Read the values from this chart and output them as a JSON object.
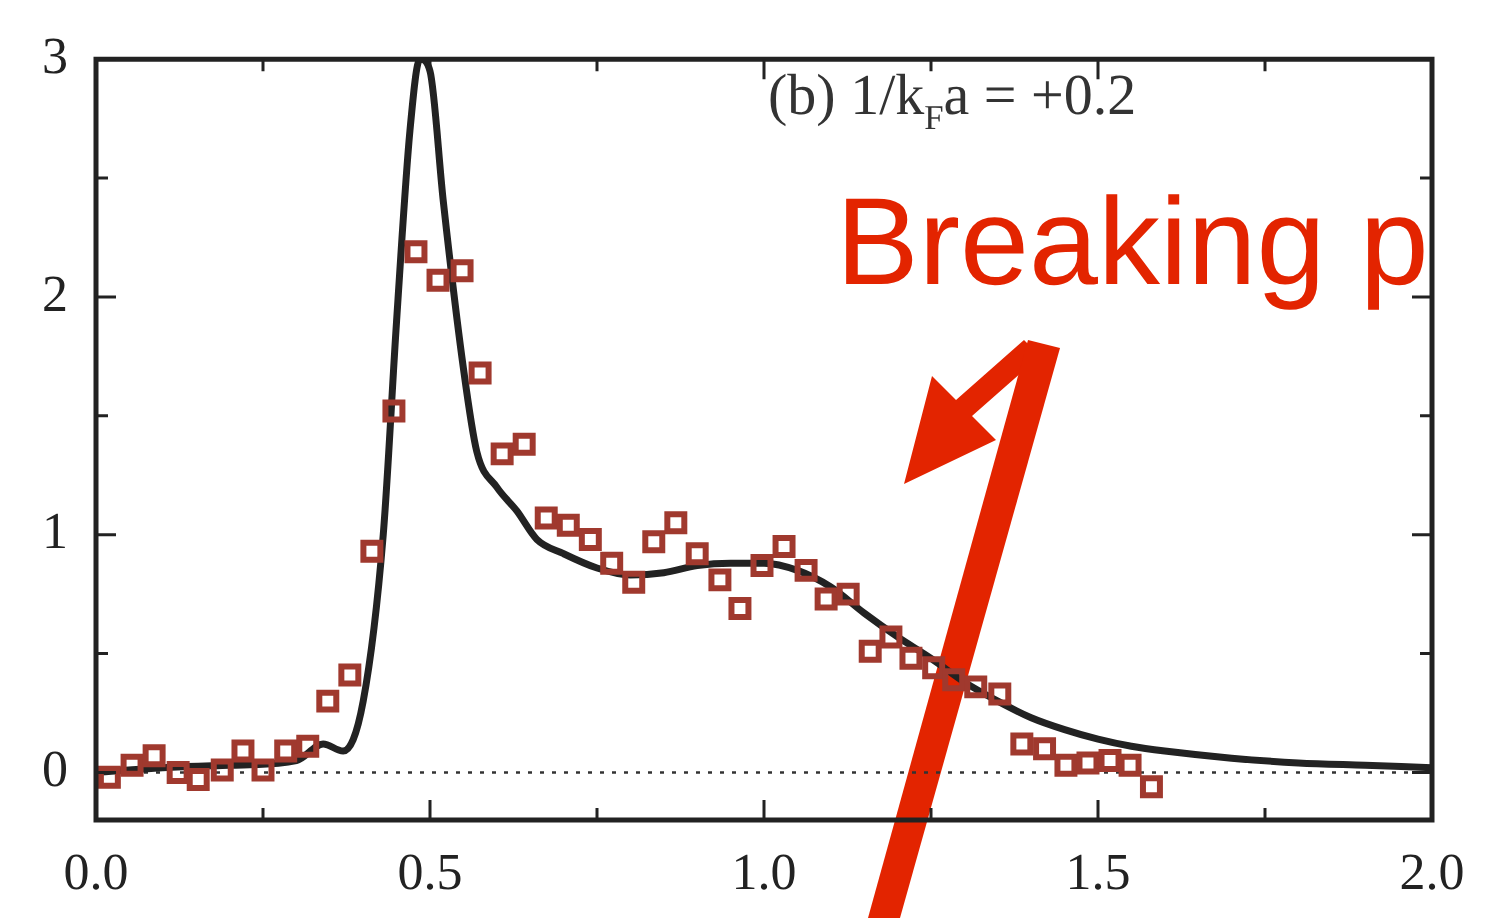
{
  "chart_data": {
    "type": "line",
    "annotations": [
      "(b) 1/k$_{F}$a = +0.2",
      "Breaking p"
    ],
    "xlim": [
      0,
      2
    ],
    "xticks": [
      {
        "value": 0,
        "label": "0.0"
      },
      {
        "value": 0.25,
        "label": null
      },
      {
        "value": 0.5,
        "label": "0.5"
      },
      {
        "value": 0.75,
        "label": null
      },
      {
        "value": 1,
        "label": "1.0"
      },
      {
        "value": 1.25,
        "label": null
      },
      {
        "value": 1.5,
        "label": "1.5"
      },
      {
        "value": 1.75,
        "label": null
      },
      {
        "value": 2,
        "label": "2.0"
      }
    ],
    "ylim": [
      -0.2,
      3
    ],
    "yticks": [
      0,
      {
        "value": 0.5,
        "label": null
      },
      1,
      {
        "value": 1.5,
        "label": null
      },
      2,
      {
        "value": 2.5,
        "label": null
      },
      3
    ],
    "ref_lines": [
      {
        "axis": "y",
        "value": 0,
        "line_style": "dotted",
        "color": "#333333"
      }
    ],
    "grid": false,
    "legend": false,
    "series": [
      {
        "color": "#222222",
        "marker": "none",
        "x": [
          0,
          0.1,
          0.2,
          0.3,
          0.34,
          0.37,
          0.4,
          0.43,
          0.45,
          0.47,
          0.485,
          0.5,
          0.52,
          0.55,
          0.57,
          0.6,
          0.63,
          0.66,
          0.7,
          0.75,
          0.8,
          0.85,
          0.9,
          0.95,
          1,
          1.05,
          1.1,
          1.15,
          1.2,
          1.25,
          1.3,
          1.35,
          1.4,
          1.45,
          1.5,
          1.55,
          1.6,
          1.7,
          1.8,
          1.9,
          2
        ],
        "values": [
          0,
          0.02,
          0.03,
          0.05,
          0.12,
          0.09,
          0.3,
          1.0,
          1.9,
          2.7,
          3.0,
          2.95,
          2.4,
          1.7,
          1.35,
          1.2,
          1.1,
          0.98,
          0.92,
          0.86,
          0.83,
          0.84,
          0.87,
          0.88,
          0.88,
          0.85,
          0.78,
          0.67,
          0.57,
          0.48,
          0.38,
          0.3,
          0.23,
          0.18,
          0.14,
          0.11,
          0.09,
          0.06,
          0.04,
          0.03,
          0.02
        ]
      },
      {
        "type": "scatter",
        "color": "#a0392e",
        "marker": "square",
        "x": [
          0.02,
          0.054,
          0.087,
          0.123,
          0.153,
          0.189,
          0.22,
          0.25,
          0.284,
          0.317,
          0.347,
          0.38,
          0.413,
          0.446,
          0.479,
          0.512,
          0.548,
          0.575,
          0.608,
          0.641,
          0.674,
          0.707,
          0.74,
          0.772,
          0.805,
          0.835,
          0.868,
          0.9,
          0.934,
          0.964,
          0.997,
          1.03,
          1.063,
          1.093,
          1.126,
          1.159,
          1.19,
          1.22,
          1.254,
          1.284,
          1.317,
          1.353,
          1.386,
          1.42,
          1.452,
          1.485,
          1.518,
          1.548,
          1.58
        ],
        "values": [
          -0.02,
          0.03,
          0.07,
          0.0,
          -0.03,
          0.01,
          0.09,
          0.01,
          0.09,
          0.11,
          0.3,
          0.41,
          0.93,
          1.52,
          2.19,
          2.07,
          2.11,
          1.68,
          1.34,
          1.38,
          1.07,
          1.04,
          0.98,
          0.88,
          0.8,
          0.97,
          1.05,
          0.92,
          0.81,
          0.69,
          0.87,
          0.95,
          0.85,
          0.73,
          0.75,
          0.51,
          0.57,
          0.48,
          0.44,
          0.39,
          0.36,
          0.33,
          0.12,
          0.1,
          0.03,
          0.04,
          0.05,
          0.03,
          -0.06
        ]
      }
    ]
  }
}
